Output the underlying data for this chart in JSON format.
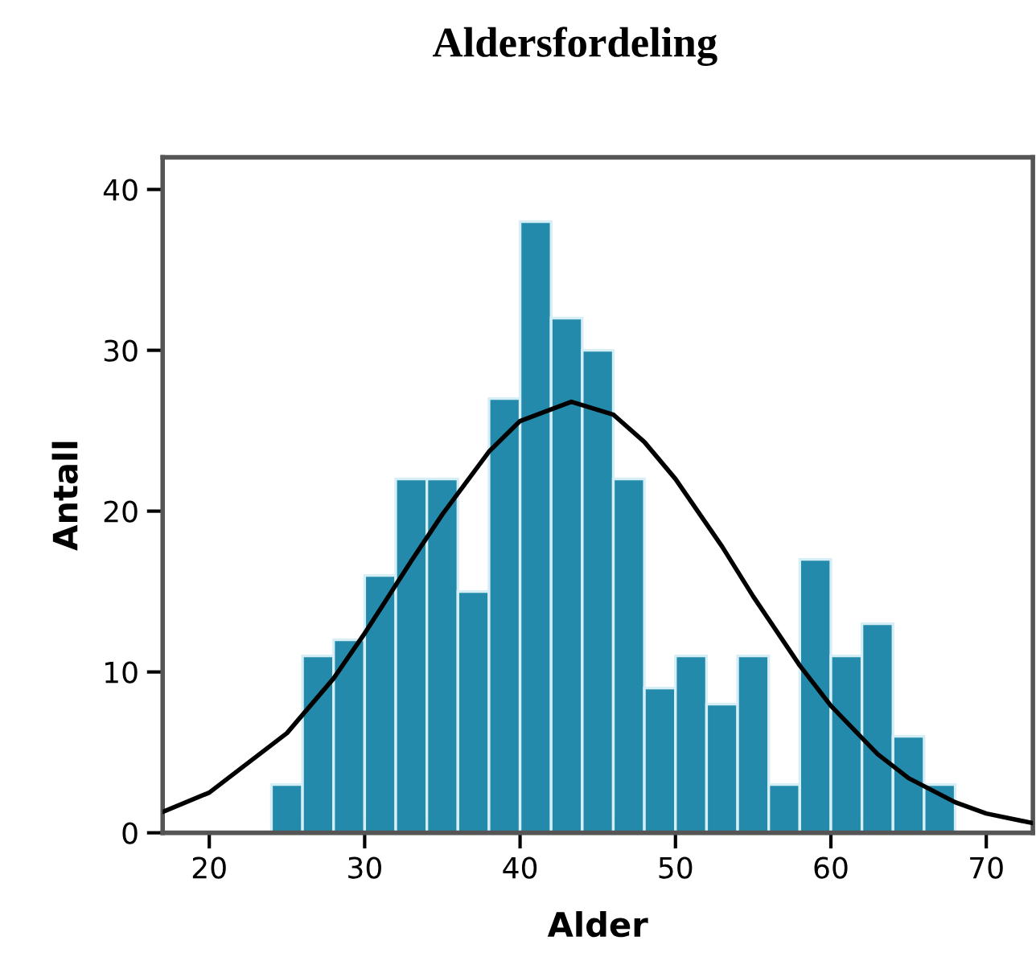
{
  "chart_data": {
    "type": "histogram",
    "title": "Aldersfordeling",
    "xlabel": "Alder",
    "ylabel": "Antall",
    "series": [
      {
        "color": "#248aab",
        "bins": [
          24,
          26,
          28,
          30,
          32,
          34,
          36,
          38,
          40,
          42,
          44,
          46,
          48,
          50,
          52,
          54,
          56,
          58,
          60,
          62,
          64,
          66,
          68
        ],
        "values": [
          3,
          11,
          12,
          16,
          22,
          22,
          15,
          27,
          38,
          32,
          30,
          22,
          9,
          11,
          8,
          11,
          3,
          17,
          11,
          13,
          6,
          3
        ]
      },
      {
        "type": "line",
        "color": "#000000",
        "x": [
          17,
          20,
          25,
          28,
          30,
          33,
          35,
          38,
          40,
          43.3,
          46,
          48,
          50,
          53,
          55,
          58,
          60,
          63,
          65,
          68,
          70,
          73
        ],
        "values": [
          1.3,
          2.5,
          6.2,
          9.6,
          12.4,
          16.9,
          19.8,
          23.7,
          25.6,
          26.8,
          26.0,
          24.3,
          22.0,
          17.8,
          14.7,
          10.4,
          7.9,
          4.9,
          3.4,
          1.9,
          1.2,
          0.6
        ]
      }
    ],
    "xlim": [
      17,
      73
    ],
    "xticks": [
      20,
      30,
      40,
      50,
      60,
      70
    ],
    "ylim": [
      0,
      42
    ],
    "yticks": [
      0,
      10,
      20,
      30,
      40
    ],
    "grid": false
  }
}
